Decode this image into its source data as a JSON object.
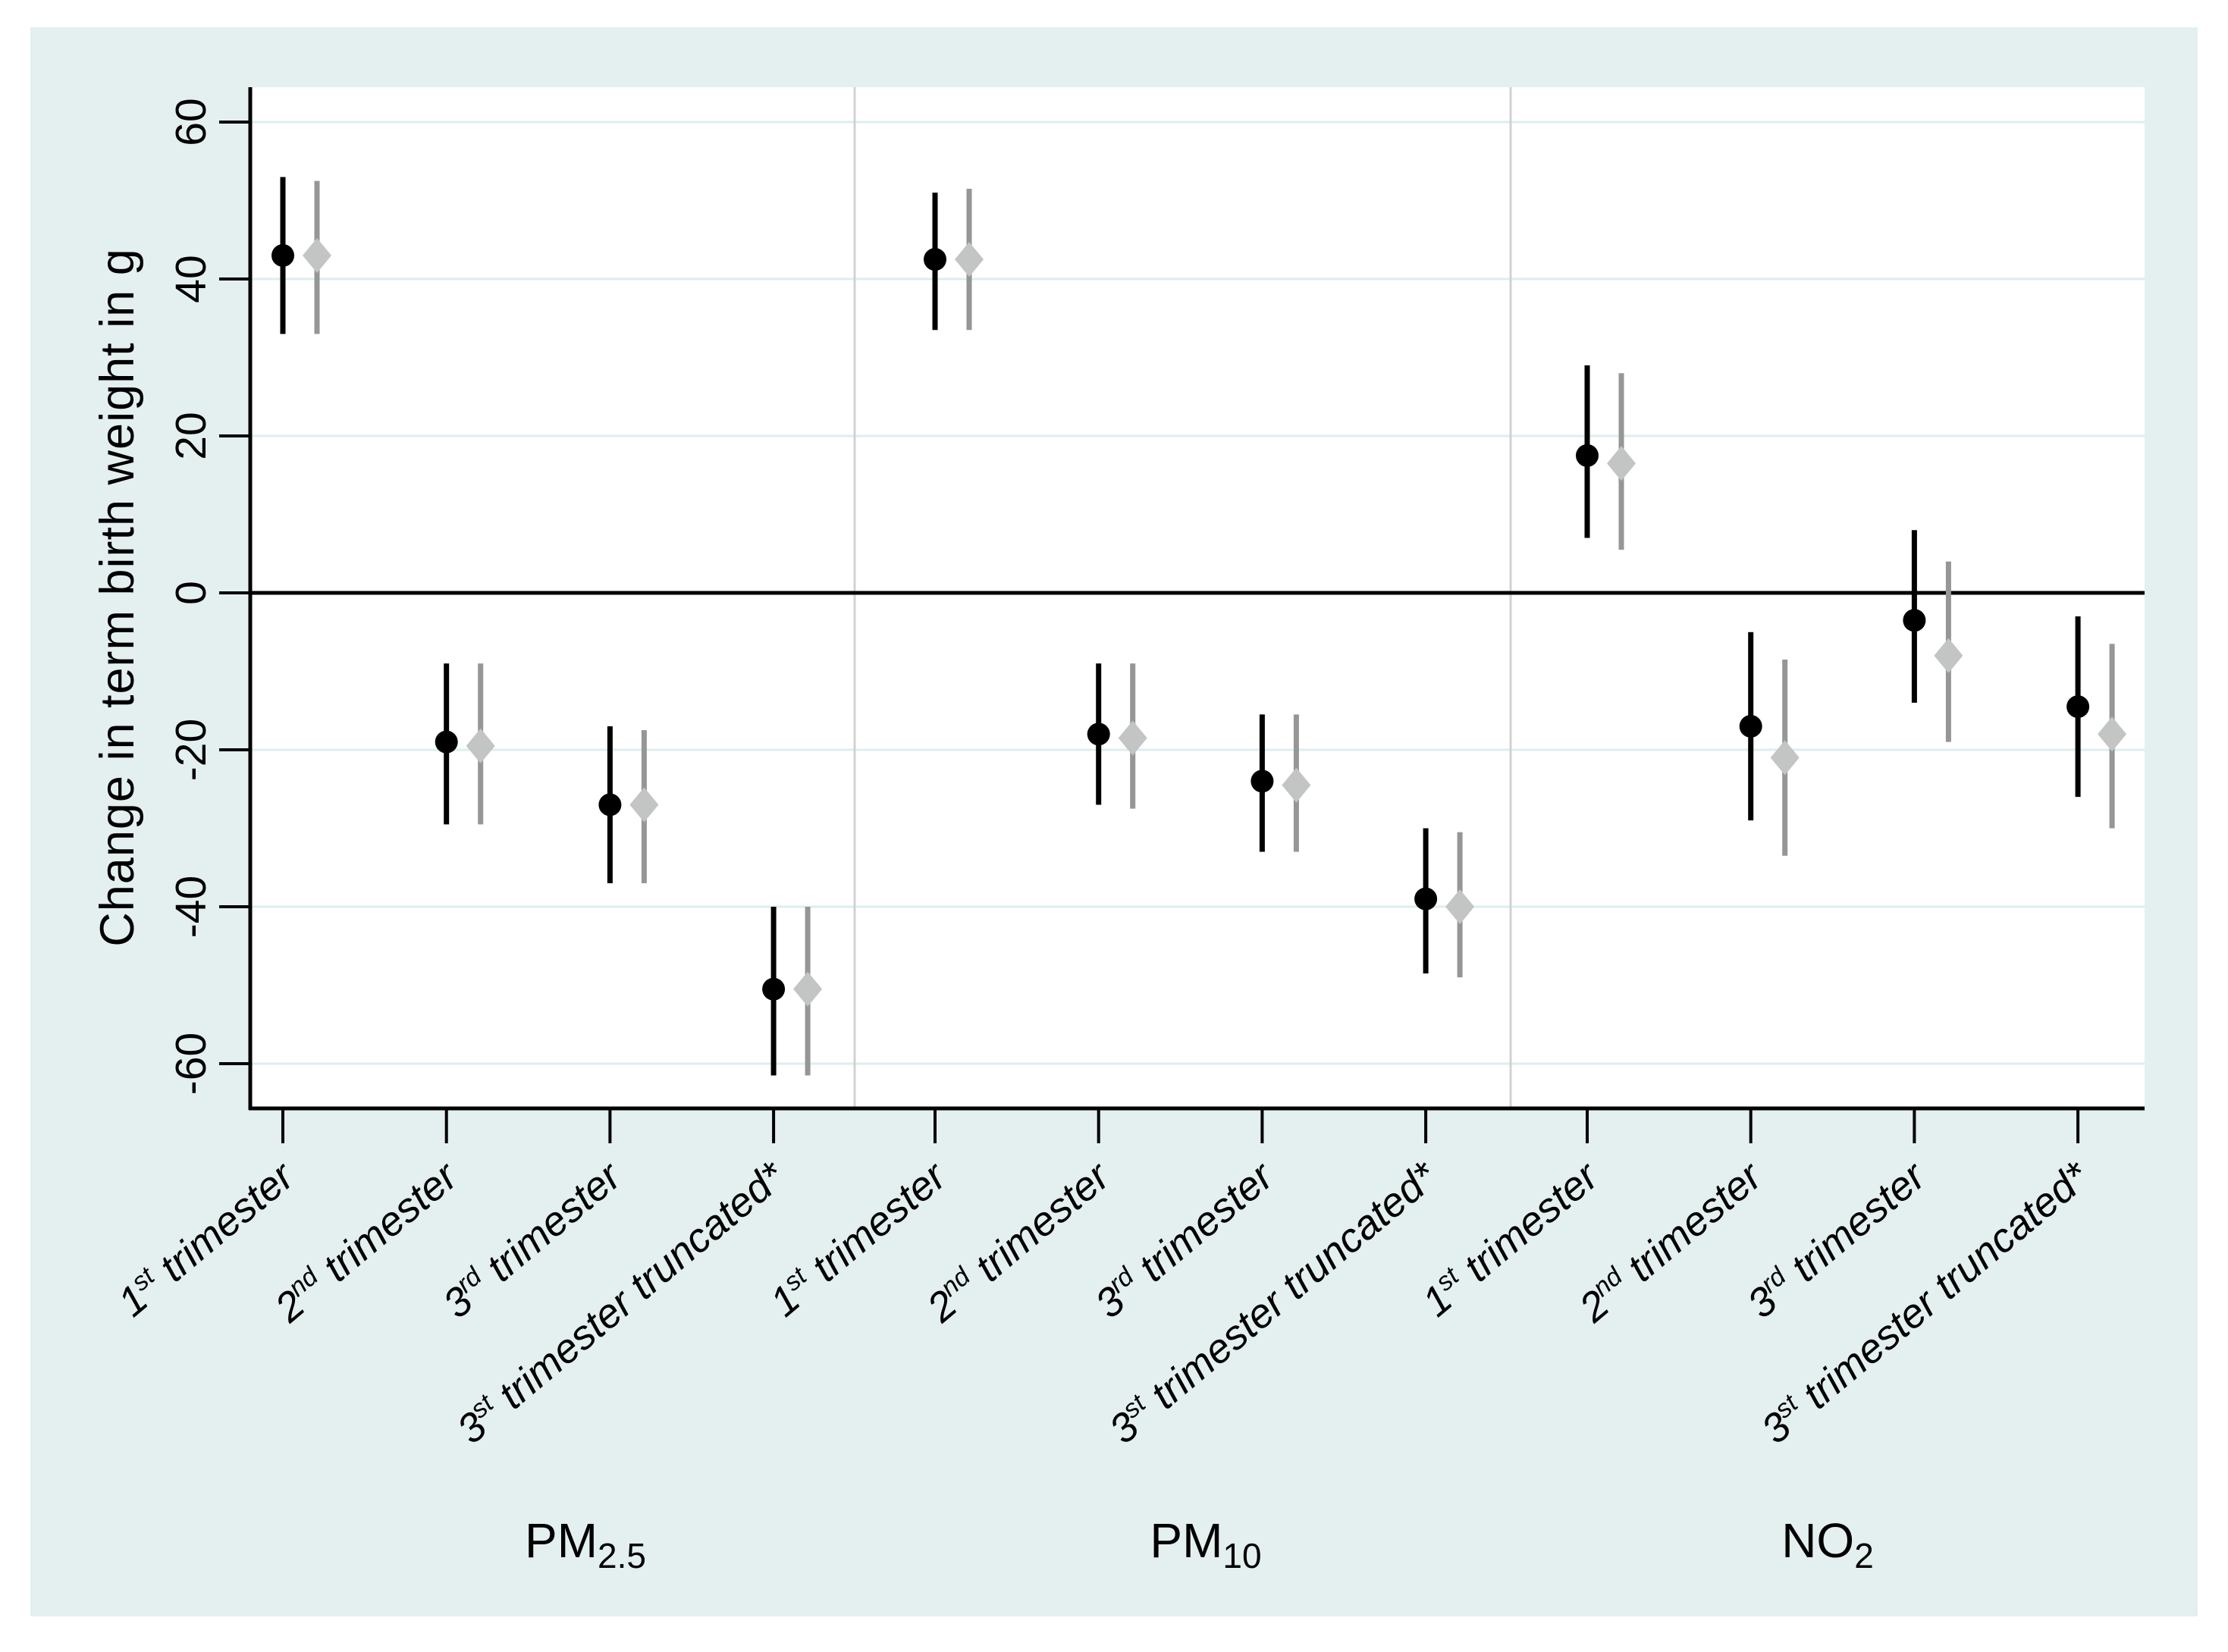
{
  "chart_data": {
    "type": "scatter",
    "subtype": "forest-dot-and-ci",
    "title": "",
    "ylabel": "Change in term birth weight in g",
    "xlabel": "",
    "ylim": [
      -65,
      64
    ],
    "y_ticks": [
      60,
      40,
      20,
      0,
      -20,
      -40,
      -60
    ],
    "zero_reference_line": 0,
    "grid": "horizontal-light",
    "legend": "none",
    "category_labels": [
      {
        "prefix": "1",
        "sup": "st",
        "rest": " trimester"
      },
      {
        "prefix": "2",
        "sup": "nd",
        "rest": " trimester"
      },
      {
        "prefix": "3",
        "sup": "rd",
        "rest": " trimester"
      },
      {
        "prefix": "3",
        "sup": "st",
        "rest": " trimester truncated*"
      }
    ],
    "panels": [
      {
        "label_main": "PM",
        "label_sub": "2.5",
        "series": [
          {
            "id": "black-circle",
            "marker": "circle",
            "points": [
              {
                "est": 43,
                "lo": 33,
                "hi": 53
              },
              {
                "est": -19,
                "lo": -29.5,
                "hi": -9
              },
              {
                "est": -27,
                "lo": -37,
                "hi": -17
              },
              {
                "est": -50.5,
                "lo": -61.5,
                "hi": -40
              }
            ]
          },
          {
            "id": "gray-diamond",
            "marker": "diamond",
            "points": [
              {
                "est": 43,
                "lo": 33,
                "hi": 52.5
              },
              {
                "est": -19.5,
                "lo": -29.5,
                "hi": -9
              },
              {
                "est": -27,
                "lo": -37,
                "hi": -17.5
              },
              {
                "est": -50.5,
                "lo": -61.5,
                "hi": -40
              }
            ]
          }
        ]
      },
      {
        "label_main": "PM",
        "label_sub": "10",
        "series": [
          {
            "id": "black-circle",
            "marker": "circle",
            "points": [
              {
                "est": 42.5,
                "lo": 33.5,
                "hi": 51
              },
              {
                "est": -18,
                "lo": -27,
                "hi": -9
              },
              {
                "est": -24,
                "lo": -33,
                "hi": -15.5
              },
              {
                "est": -39,
                "lo": -48.5,
                "hi": -30
              }
            ]
          },
          {
            "id": "gray-diamond",
            "marker": "diamond",
            "points": [
              {
                "est": 42.5,
                "lo": 33.5,
                "hi": 51.5
              },
              {
                "est": -18.5,
                "lo": -27.5,
                "hi": -9
              },
              {
                "est": -24.5,
                "lo": -33,
                "hi": -15.5
              },
              {
                "est": -40,
                "lo": -49,
                "hi": -30.5
              }
            ]
          }
        ]
      },
      {
        "label_main": "NO",
        "label_sub": "2",
        "series": [
          {
            "id": "black-circle",
            "marker": "circle",
            "points": [
              {
                "est": 17.5,
                "lo": 7,
                "hi": 29
              },
              {
                "est": -17,
                "lo": -29,
                "hi": -5
              },
              {
                "est": -3.5,
                "lo": -14,
                "hi": 8
              },
              {
                "est": -14.5,
                "lo": -26,
                "hi": -3
              }
            ]
          },
          {
            "id": "gray-diamond",
            "marker": "diamond",
            "points": [
              {
                "est": 16.5,
                "lo": 5.5,
                "hi": 28
              },
              {
                "est": -21,
                "lo": -33.5,
                "hi": -8.5
              },
              {
                "est": -8,
                "lo": -19,
                "hi": 4
              },
              {
                "est": -18,
                "lo": -30,
                "hi": -6.5
              }
            ]
          }
        ]
      }
    ],
    "colors": {
      "page_background": "#ffffff",
      "figure_background": "#e4eff0",
      "plot_background": "#ffffff",
      "gridline": "#ddeef0",
      "axis": "#000000",
      "zero_line": "#000000",
      "panel_separator": "#d2d2d2",
      "black_series": "#000000",
      "gray_series_line": "#969696",
      "gray_series_fill": "#c2c5c4"
    }
  }
}
